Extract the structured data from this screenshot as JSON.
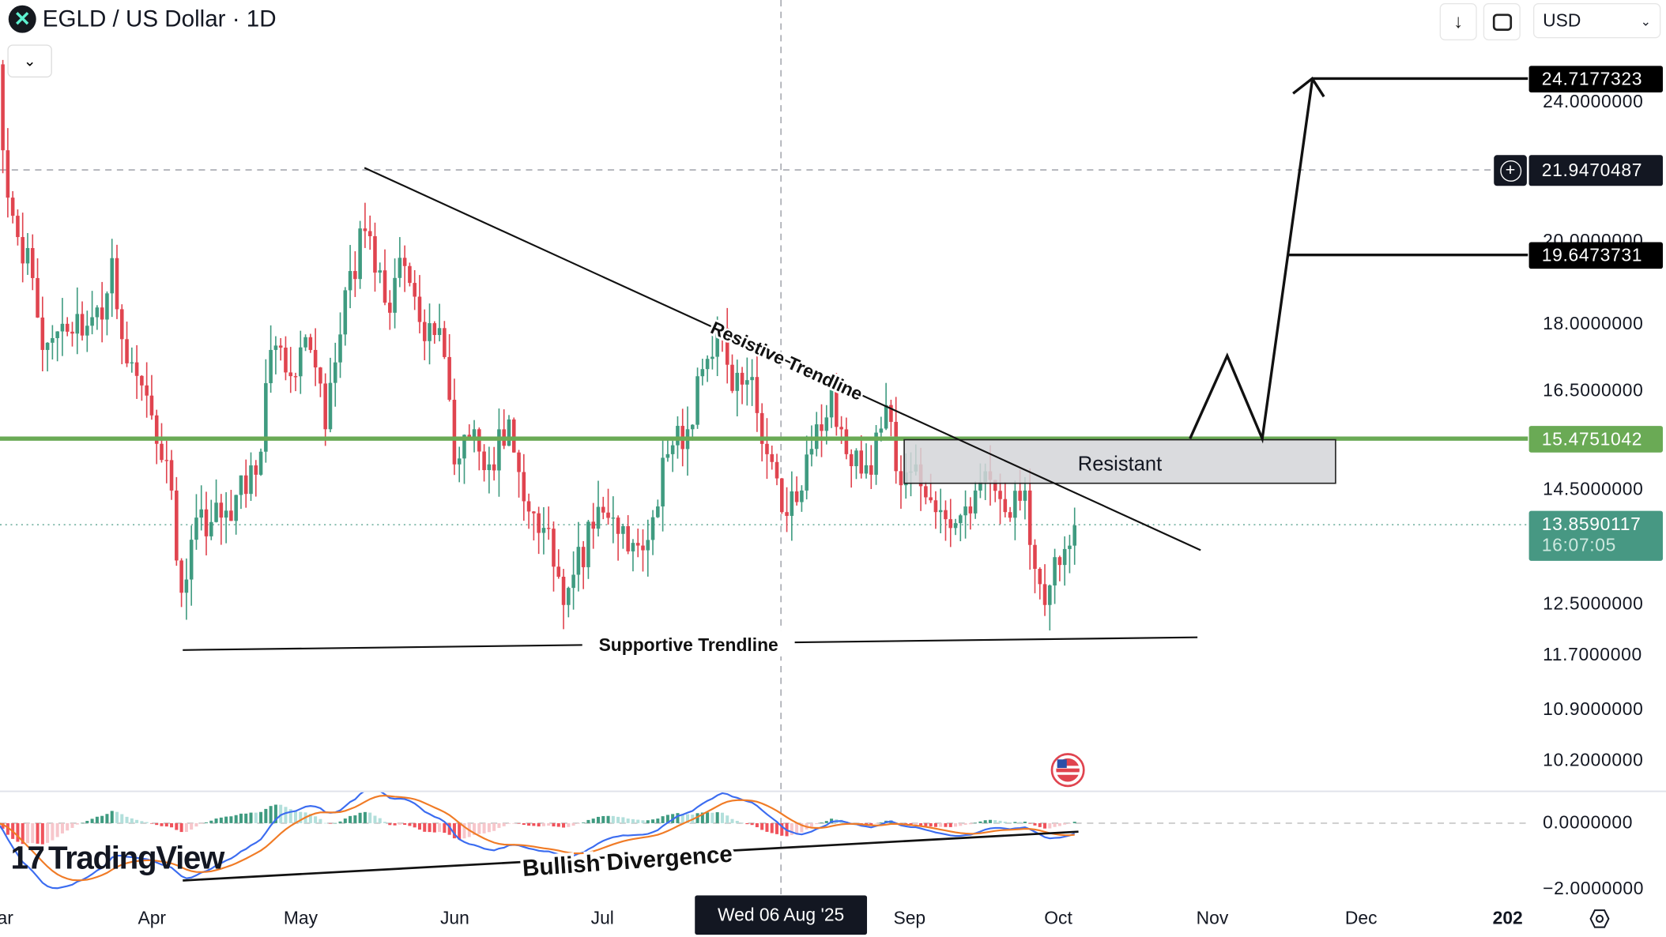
{
  "header": {
    "symbol_icon": "egld-x-logo",
    "title": "EGLD / US Dollar · 1D"
  },
  "toolbar": {
    "download_icon": "arrow-down-icon",
    "fullscreen_icon": "fullscreen-icon",
    "currency": "USD"
  },
  "price_axis": {
    "ticks": [
      "24.0000000",
      "20.0000000",
      "18.0000000",
      "16.5000000",
      "14.5000000",
      "12.5000000",
      "11.7000000",
      "10.9000000",
      "10.2000000"
    ],
    "macd_ticks": [
      "0.0000000",
      "−2.0000000"
    ],
    "tags": {
      "target_high": "24.7177323",
      "crosshair": "21.9470487",
      "target_mid": "19.6473731",
      "horizontal_line": "15.4751042",
      "last_price": "13.8590117",
      "countdown": "16:07:05"
    }
  },
  "time_axis": {
    "labels": [
      "ar",
      "Apr",
      "May",
      "Jun",
      "Jul",
      "Sep",
      "Oct",
      "Nov",
      "Dec",
      "202"
    ],
    "crosshair_date": "Wed 06 Aug '25"
  },
  "annotations": {
    "resistive_trendline": "Resistive Trendline",
    "supportive_trendline": "Supportive Trendline",
    "resistant_zone": "Resistant",
    "bullish_divergence": "Bullish Divergence"
  },
  "watermark": "TradingView",
  "colors": {
    "up": "#3f9b80",
    "down": "#e0444f",
    "hline": "#6aaa55",
    "last": "#479883",
    "macd": "#3b6cf0",
    "signal": "#f07b26",
    "zone": "#d4d5d8"
  },
  "chart_data": {
    "type": "candlestick",
    "scale": "log",
    "year": 2025,
    "ylim": [
      10.0,
      25.5
    ],
    "macd_ylim": [
      -2.5,
      1.3
    ],
    "indicator": "MACD",
    "key_closes": [
      [
        "03-01",
        25.2
      ],
      [
        "03-03",
        21.2
      ],
      [
        "03-08",
        19.1
      ],
      [
        "03-10",
        17.4
      ],
      [
        "03-14",
        18.0
      ],
      [
        "03-22",
        18.1
      ],
      [
        "03-24",
        19.6
      ],
      [
        "03-27",
        17.1
      ],
      [
        "03-31",
        16.4
      ],
      [
        "04-05",
        14.5
      ],
      [
        "04-07",
        12.7
      ],
      [
        "04-10",
        14.0
      ],
      [
        "04-15",
        14.0
      ],
      [
        "04-22",
        14.8
      ],
      [
        "04-25",
        17.4
      ],
      [
        "04-28",
        16.9
      ],
      [
        "05-03",
        17.4
      ],
      [
        "05-06",
        15.7
      ],
      [
        "05-10",
        18.8
      ],
      [
        "05-14",
        20.3
      ],
      [
        "05-18",
        18.5
      ],
      [
        "05-22",
        19.4
      ],
      [
        "05-26",
        17.6
      ],
      [
        "05-29",
        17.9
      ],
      [
        "06-01",
        15.0
      ],
      [
        "06-05",
        15.7
      ],
      [
        "06-08",
        15.0
      ],
      [
        "06-12",
        15.9
      ],
      [
        "06-15",
        14.3
      ],
      [
        "06-20",
        13.8
      ],
      [
        "06-23",
        12.5
      ],
      [
        "06-25",
        13.0
      ],
      [
        "06-29",
        13.8
      ],
      [
        "07-03",
        14.0
      ],
      [
        "07-06",
        13.4
      ],
      [
        "07-10",
        13.6
      ],
      [
        "07-14",
        15.2
      ],
      [
        "07-18",
        15.7
      ],
      [
        "07-22",
        17.2
      ],
      [
        "07-25",
        17.9
      ],
      [
        "07-27",
        16.5
      ],
      [
        "07-31",
        16.8
      ],
      [
        "08-03",
        15.2
      ],
      [
        "08-06",
        14.1
      ],
      [
        "08-10",
        14.5
      ],
      [
        "08-13",
        15.8
      ],
      [
        "08-16",
        16.6
      ],
      [
        "08-19",
        15.2
      ],
      [
        "08-24",
        14.8
      ],
      [
        "08-27",
        16.2
      ],
      [
        "08-30",
        14.6
      ],
      [
        "09-02",
        15.0
      ],
      [
        "09-06",
        14.1
      ],
      [
        "09-10",
        13.9
      ],
      [
        "09-14",
        14.5
      ],
      [
        "09-17",
        14.7
      ],
      [
        "09-20",
        14.1
      ],
      [
        "09-24",
        14.5
      ],
      [
        "09-26",
        13.1
      ],
      [
        "09-28",
        12.5
      ],
      [
        "09-30",
        13.3
      ],
      [
        "10-03",
        13.5
      ],
      [
        "10-04",
        13.86
      ]
    ]
  }
}
